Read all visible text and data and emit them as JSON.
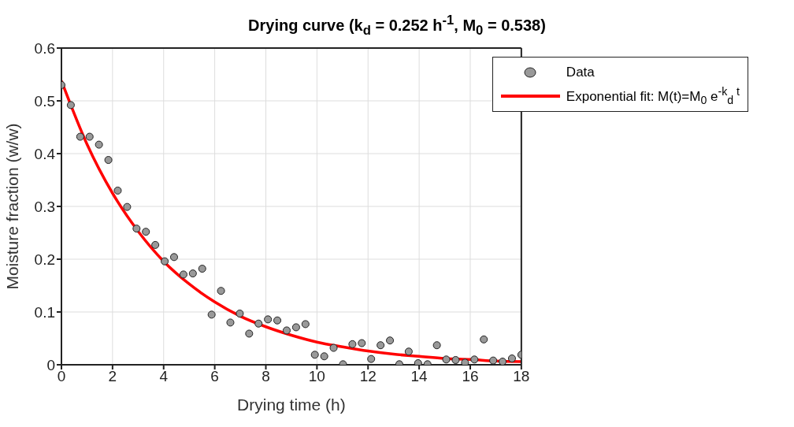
{
  "chart_data": {
    "type": "scatter",
    "title": "Drying curve (k$_{d}$ = 0.252 h$^{-1}$, M$_{0}$ = 0.538)",
    "xlabel": "Drying time (h)",
    "ylabel": "Moisture fraction (w/w)",
    "xlim": [
      0,
      18
    ],
    "xticks": [
      0,
      2,
      4,
      6,
      8,
      10,
      12,
      14,
      16,
      18
    ],
    "ylim": [
      0,
      0.6
    ],
    "yticks": [
      0,
      0.1,
      0.2,
      0.3,
      0.4,
      0.5,
      0.6
    ],
    "grid": true,
    "legend": "top right",
    "line_style": "solid",
    "series": [
      {
        "name": "Data",
        "marker": "circle",
        "color": "#999999",
        "x": [
          0,
          0.367,
          0.735,
          1.102,
          1.469,
          1.837,
          2.204,
          2.571,
          2.939,
          3.306,
          3.673,
          4.041,
          4.408,
          4.776,
          5.143,
          5.51,
          5.878,
          6.245,
          6.612,
          6.98,
          7.347,
          7.714,
          8.082,
          8.449,
          8.816,
          9.184,
          9.551,
          9.918,
          10.286,
          10.653,
          11.02,
          11.388,
          11.755,
          12.122,
          12.49,
          12.857,
          13.224,
          13.592,
          13.959,
          14.327,
          14.694,
          15.061,
          15.429,
          15.796,
          16.163,
          16.531,
          16.898,
          17.265,
          17.633,
          18
        ],
        "values": [
          0.53,
          0.492,
          0.432,
          0.432,
          0.417,
          0.388,
          0.33,
          0.299,
          0.258,
          0.252,
          0.227,
          0.196,
          0.204,
          0.171,
          0.173,
          0.182,
          0.095,
          0.14,
          0.08,
          0.097,
          0.059,
          0.078,
          0.086,
          0.084,
          0.065,
          0.071,
          0.077,
          0.019,
          0.016,
          0.032,
          0.001,
          0.039,
          0.041,
          0.011,
          0.037,
          0.046,
          0.001,
          0.025,
          0.003,
          0.001,
          0.037,
          0.01,
          0.009,
          0.004,
          0.01,
          0.048,
          0.008,
          0.006,
          0.012,
          0.019
        ]
      },
      {
        "name": "Exponential fit: M(t)=M$_{0}$ e$^{-k}$$_{d}$$^{ t}$",
        "type": "line",
        "marker": "none",
        "color": "#ff0000",
        "x": [
          0,
          1,
          2,
          3,
          4,
          5,
          6,
          7,
          8,
          9,
          10,
          11,
          12,
          13,
          14,
          15,
          16,
          17,
          18
        ],
        "values": [
          0.538,
          0.418,
          0.325,
          0.253,
          0.196,
          0.153,
          0.119,
          0.092,
          0.072,
          0.056,
          0.043,
          0.034,
          0.026,
          0.02,
          0.016,
          0.012,
          0.01,
          0.007,
          0.006
        ]
      }
    ]
  }
}
